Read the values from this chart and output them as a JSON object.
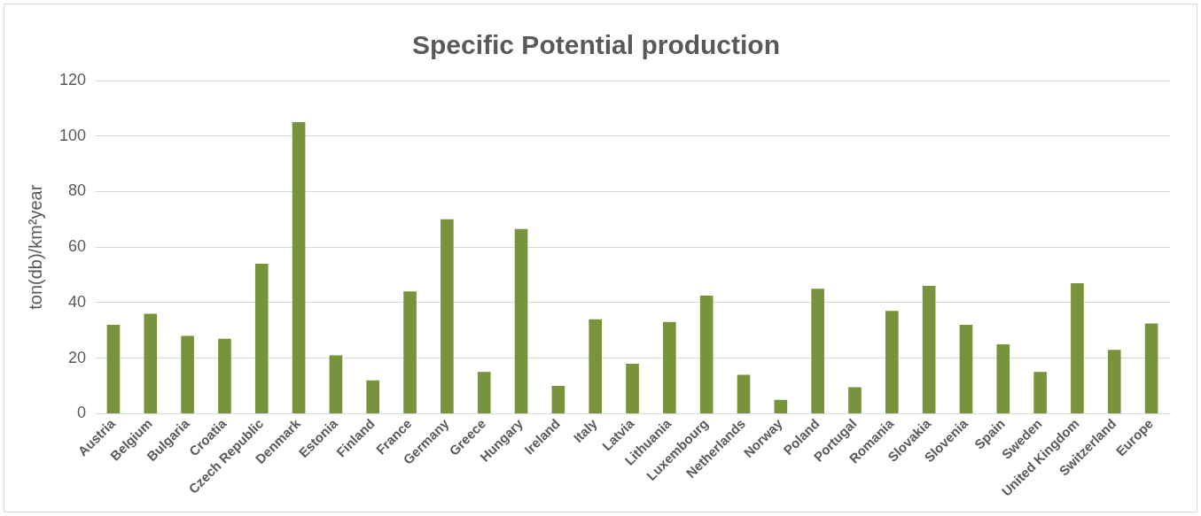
{
  "chart_data": {
    "type": "bar",
    "title": "Specific Potential production",
    "ylabel": "ton(db)/km²year",
    "categories": [
      "Austria",
      "Belgium",
      "Bulgaria",
      "Croatia",
      "Czech Republic",
      "Denmark",
      "Estonia",
      "Finland",
      "France",
      "Germany",
      "Greece",
      "Hungary",
      "Ireland",
      "Italy",
      "Latvia",
      "Lithuania",
      "Luxembourg",
      "Netherlands",
      "Norway",
      "Poland",
      "Portugal",
      "Romania",
      "Slovakia",
      "Slovenia",
      "Spain",
      "Sweden",
      "United Kingdom",
      "Switzerland",
      "Europe"
    ],
    "values": [
      32,
      36,
      28,
      27,
      54,
      105,
      21,
      12,
      44,
      70,
      15,
      66.5,
      10,
      34,
      18,
      33,
      42.5,
      14,
      5,
      45,
      9.5,
      37,
      46,
      32,
      25,
      15,
      47,
      23,
      32.5
    ],
    "color": "#77933c",
    "ylim": [
      0,
      120
    ],
    "yticks": [
      0,
      20,
      40,
      60,
      80,
      100,
      120
    ],
    "grid": "y"
  }
}
